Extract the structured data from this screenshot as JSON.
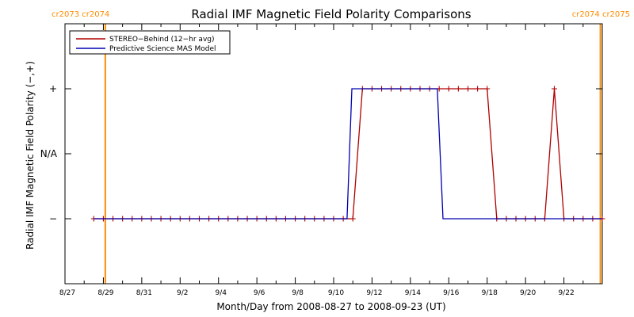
{
  "chart_data": {
    "type": "line",
    "title": "Radial IMF Magnetic Field Polarity Comparisons",
    "xlabel": "Month/Day from 2008-08-27 to 2008-09-23 (UT)",
    "ylabel": "Radial IMF Magnetic Field Polarity (−,+)",
    "x_tick_labels": [
      "8/27",
      "8/29",
      "8/31",
      "9/2",
      "9/4",
      "9/6",
      "9/8",
      "9/10",
      "9/12",
      "9/14",
      "9/16",
      "9/18",
      "9/20",
      "9/22"
    ],
    "x_tick_days": [
      0,
      2,
      4,
      6,
      8,
      10,
      12,
      14,
      16,
      18,
      20,
      22,
      24,
      26
    ],
    "xlim": [
      0,
      28
    ],
    "y_ticks": [
      {
        "value": 1,
        "label": "+"
      },
      {
        "value": 0,
        "label": "N/A"
      },
      {
        "value": -1,
        "label": "−"
      }
    ],
    "ylim": [
      -2,
      2
    ],
    "carrington_markers": [
      {
        "day": 2.1,
        "label": "cr2073 cr2074",
        "side": "left"
      },
      {
        "day": 27.9,
        "label": "cr2074 cr2075",
        "side": "right"
      }
    ],
    "legend": {
      "placement": "top-left"
    },
    "series": [
      {
        "name": "STEREO−Behind (12−hr avg)",
        "color": "#b00000",
        "marker": "+",
        "points": [
          [
            1.5,
            -1
          ],
          [
            2,
            -1
          ],
          [
            2.5,
            -1
          ],
          [
            3,
            -1
          ],
          [
            3.5,
            -1
          ],
          [
            4,
            -1
          ],
          [
            4.5,
            -1
          ],
          [
            5,
            -1
          ],
          [
            5.5,
            -1
          ],
          [
            6,
            -1
          ],
          [
            6.5,
            -1
          ],
          [
            7,
            -1
          ],
          [
            7.5,
            -1
          ],
          [
            8,
            -1
          ],
          [
            8.5,
            -1
          ],
          [
            9,
            -1
          ],
          [
            9.5,
            -1
          ],
          [
            10,
            -1
          ],
          [
            10.5,
            -1
          ],
          [
            11,
            -1
          ],
          [
            11.5,
            -1
          ],
          [
            12,
            -1
          ],
          [
            12.5,
            -1
          ],
          [
            13,
            -1
          ],
          [
            13.5,
            -1
          ],
          [
            14,
            -1
          ],
          [
            14.5,
            -1
          ],
          [
            15,
            -1
          ],
          [
            15.5,
            1
          ],
          [
            16,
            1
          ],
          [
            16.5,
            1
          ],
          [
            17,
            1
          ],
          [
            17.5,
            1
          ],
          [
            18,
            1
          ],
          [
            18.5,
            1
          ],
          [
            19,
            1
          ],
          [
            19.5,
            1
          ],
          [
            20,
            1
          ],
          [
            20.5,
            1
          ],
          [
            21,
            1
          ],
          [
            21.5,
            1
          ],
          [
            22,
            1
          ],
          [
            22.5,
            -1
          ],
          [
            23,
            -1
          ],
          [
            23.5,
            -1
          ],
          [
            24,
            -1
          ],
          [
            24.5,
            -1
          ],
          [
            25,
            -1
          ],
          [
            25.5,
            1
          ],
          [
            26,
            -1
          ],
          [
            26.5,
            -1
          ],
          [
            27,
            -1
          ],
          [
            27.5,
            -1
          ],
          [
            28,
            -1
          ]
        ]
      },
      {
        "name": "Predictive Science MAS Model",
        "color": "#0000b0",
        "points": [
          [
            1.5,
            -1
          ],
          [
            14.7,
            -1
          ],
          [
            14.95,
            1
          ],
          [
            19.4,
            1
          ],
          [
            19.7,
            -1
          ],
          [
            28,
            -1
          ]
        ]
      }
    ]
  }
}
